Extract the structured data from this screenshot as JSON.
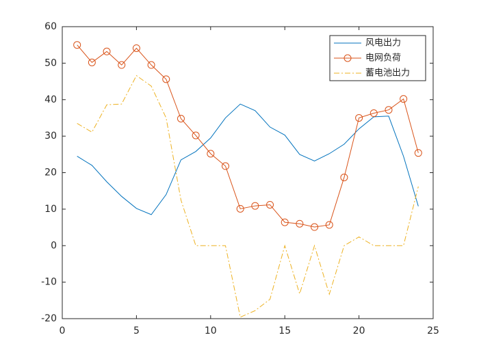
{
  "chart_data": {
    "type": "line",
    "x": [
      1,
      2,
      3,
      4,
      5,
      6,
      7,
      8,
      9,
      10,
      11,
      12,
      13,
      14,
      15,
      16,
      17,
      18,
      19,
      20,
      21,
      22,
      23,
      24
    ],
    "series": [
      {
        "name": "风电出力",
        "color": "#0072BD",
        "marker": "none",
        "dash": "solid",
        "values": [
          24.5,
          22,
          17.5,
          13.5,
          10.2,
          8.5,
          14,
          23.5,
          25.8,
          29.5,
          35,
          38.8,
          37,
          32.5,
          30.3,
          25,
          23.2,
          25.2,
          27.8,
          32,
          35.3,
          35.5,
          24.5,
          10.8
        ]
      },
      {
        "name": "电网负荷",
        "color": "#D95319",
        "marker": "circle",
        "dash": "solid",
        "values": [
          55,
          50.2,
          53.2,
          49.5,
          54.1,
          49.5,
          45.6,
          34.8,
          30.2,
          25.2,
          21.8,
          10.1,
          10.9,
          11.2,
          6.4,
          6,
          5.1,
          5.7,
          18.7,
          35,
          36.3,
          37.2,
          40.2,
          25.4
        ]
      },
      {
        "name": "蓄电池出力",
        "color": "#EDB120",
        "marker": "none",
        "dash": "dashdot",
        "values": [
          33.5,
          31.1,
          38.6,
          38.8,
          46.6,
          43.7,
          35,
          12.5,
          0,
          0,
          0,
          -19.6,
          -17.8,
          -14.7,
          0,
          -13.2,
          0,
          -13.3,
          0,
          2.4,
          0,
          0,
          0,
          16.2
        ]
      }
    ],
    "xlim": [
      0,
      25
    ],
    "xticks": [
      0,
      5,
      10,
      15,
      20,
      25
    ],
    "ylim": [
      -20,
      60
    ],
    "yticks": [
      -20,
      -10,
      0,
      10,
      20,
      30,
      40,
      50,
      60
    ],
    "legend": "top-right"
  }
}
